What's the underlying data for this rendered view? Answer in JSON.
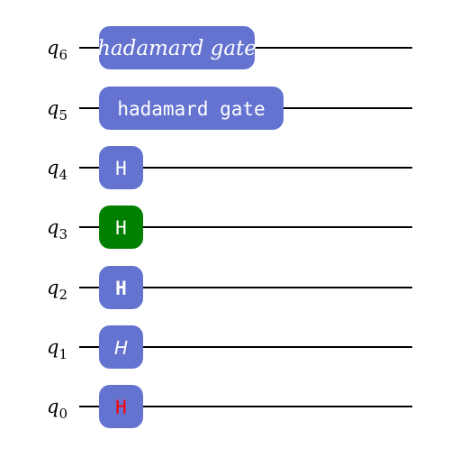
{
  "qubits": [
    {
      "name": "q",
      "index": "6",
      "gate": "hadamard gate",
      "fill": "#6573d0",
      "text_color": "#ffffff",
      "style": "serif-italic"
    },
    {
      "name": "q",
      "index": "5",
      "gate": "hadamard gate",
      "fill": "#6573d0",
      "text_color": "#ffffff",
      "style": "mono"
    },
    {
      "name": "q",
      "index": "4",
      "gate": "H",
      "fill": "#6573d0",
      "text_color": "#ffffff",
      "style": "mono"
    },
    {
      "name": "q",
      "index": "3",
      "gate": "H",
      "fill": "#008000",
      "text_color": "#ffffff",
      "style": "mono"
    },
    {
      "name": "q",
      "index": "2",
      "gate": "H",
      "fill": "#6573d0",
      "text_color": "#ffffff",
      "style": "bold"
    },
    {
      "name": "q",
      "index": "1",
      "gate": "H",
      "fill": "#6573d0",
      "text_color": "#ffffff",
      "style": "italic"
    },
    {
      "name": "q",
      "index": "0",
      "gate": "H",
      "fill": "#6573d0",
      "text_color": "#ff0000",
      "style": "mono"
    }
  ],
  "colors": {
    "wire": "#000000",
    "gate_default": "#6573d0",
    "gate_highlight": "#008000",
    "label_alert": "#ff0000"
  }
}
